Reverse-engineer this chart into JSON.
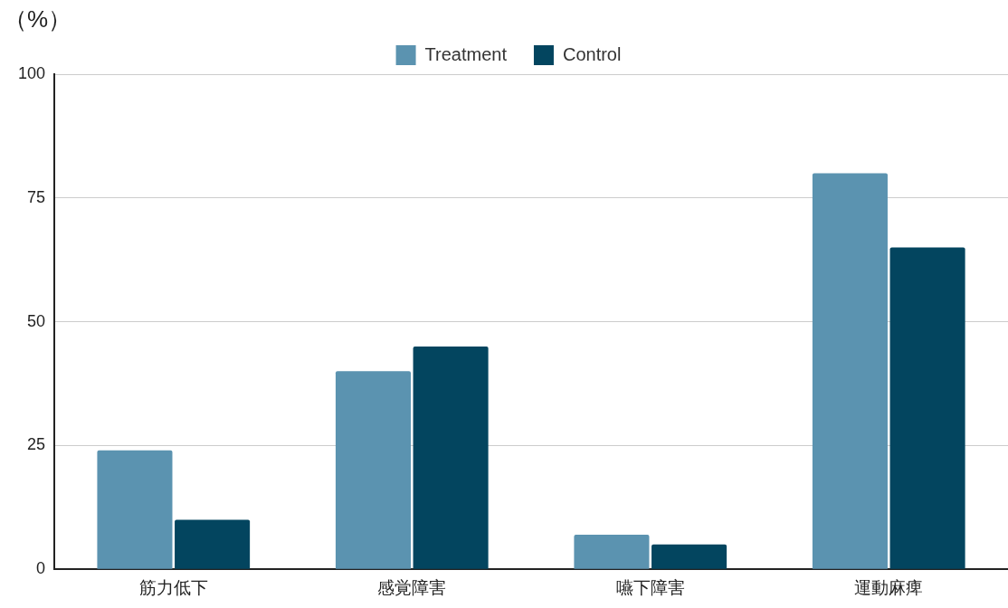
{
  "chart_data": {
    "type": "bar",
    "ylabel": "（%）",
    "categories": [
      "筋力低下",
      "感覚障害",
      "嚥下障害",
      "運動麻痺"
    ],
    "series": [
      {
        "name": "Treatment",
        "color": "#5b93b0",
        "values": [
          24,
          40,
          7,
          80
        ]
      },
      {
        "name": "Control",
        "color": "#03455f",
        "values": [
          10,
          45,
          5,
          65
        ]
      }
    ],
    "ylim": [
      0,
      100
    ],
    "yticks": [
      0,
      25,
      50,
      75,
      100
    ],
    "grid": "y",
    "legend": "top"
  }
}
